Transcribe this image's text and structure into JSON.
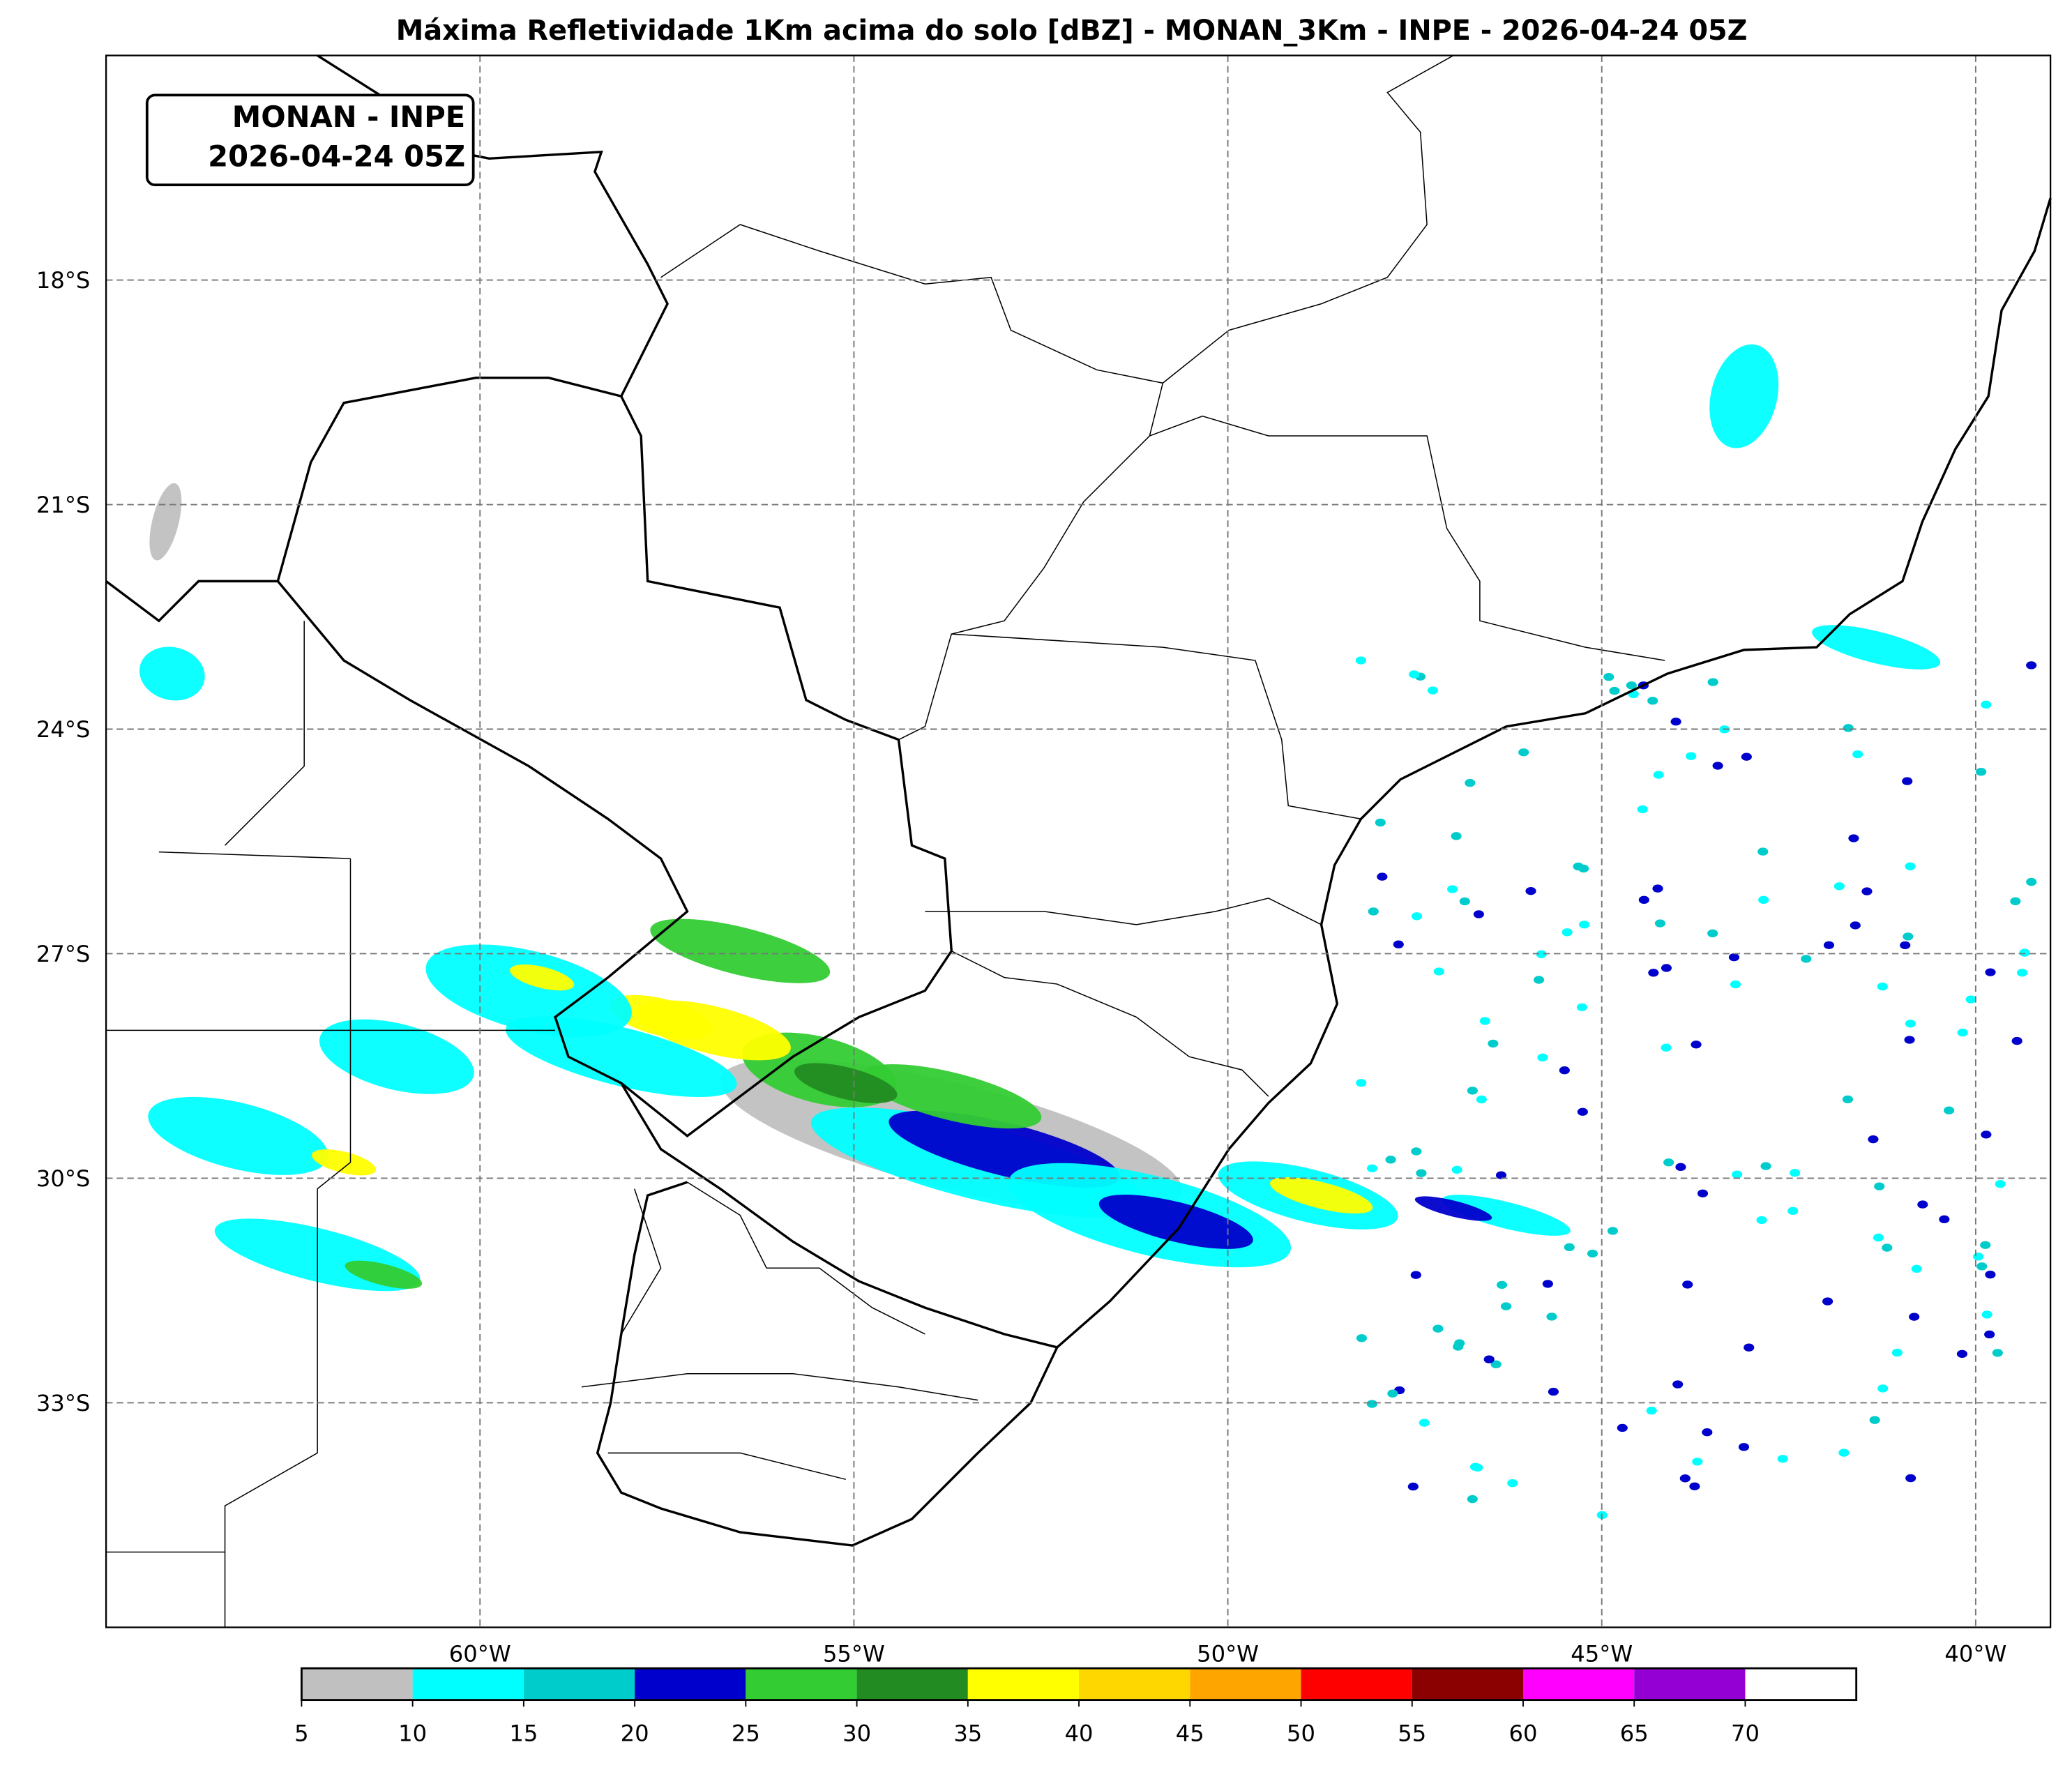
{
  "map": {
    "title": "Máxima Refletividade 1Km acima do solo [dBZ] - MONAN_3Km - INPE - 2026-04-24 05Z",
    "badge": [
      "MONAN - INPE",
      "2026-04-24 05Z"
    ],
    "xlim": [
      -65,
      -39
    ],
    "ylim": [
      -36,
      -15
    ],
    "xticks": [
      {
        "value": -60,
        "label": "60°W"
      },
      {
        "value": -55,
        "label": "55°W"
      },
      {
        "value": -50,
        "label": "50°W"
      },
      {
        "value": -45,
        "label": "45°W"
      },
      {
        "value": -40,
        "label": "40°W"
      }
    ],
    "yticks": [
      {
        "value": -18,
        "label": "18°S"
      },
      {
        "value": -21,
        "label": "21°S"
      },
      {
        "value": -24,
        "label": "24°S"
      },
      {
        "value": -27,
        "label": "27°S"
      },
      {
        "value": -30,
        "label": "30°S"
      },
      {
        "value": -33,
        "label": "33°S"
      }
    ],
    "grid": true,
    "colorbar": {
      "lim": [
        5,
        75
      ],
      "levels": [
        5,
        10,
        15,
        20,
        25,
        30,
        35,
        40,
        45,
        50,
        55,
        60,
        65,
        70
      ],
      "colors": [
        "#c0c0c0",
        "#00ffff",
        "#00cccc",
        "#0000cc",
        "#33cc33",
        "#228b22",
        "#ffff00",
        "#ffd700",
        "#ffa500",
        "#ff0000",
        "#8b0000",
        "#ff00ff",
        "#9400d3",
        "#ffffff"
      ]
    }
  }
}
